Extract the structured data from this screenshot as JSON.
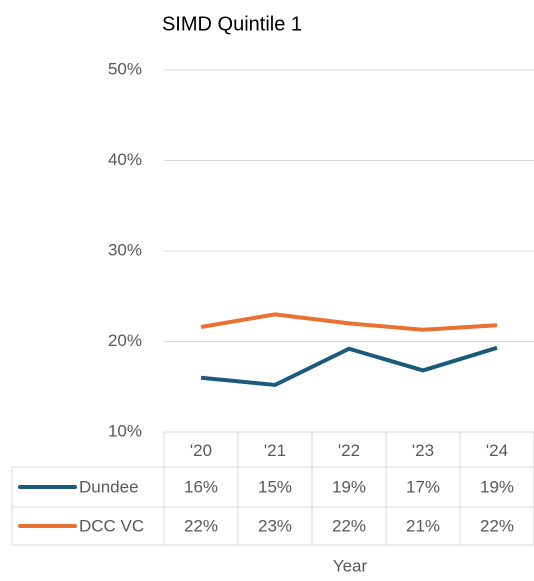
{
  "chart_data": {
    "type": "line",
    "title": "SIMD Quintile 1",
    "x_label": "Year",
    "categories": [
      "'20",
      "'21",
      "'22",
      "'23",
      "'24"
    ],
    "series": [
      {
        "name": "Dundee",
        "color": "#1b5a7a",
        "values": [
          16.0,
          15.2,
          19.2,
          16.8,
          19.3
        ],
        "value_labels": [
          "16%",
          "15%",
          "19%",
          "17%",
          "19%"
        ]
      },
      {
        "name": "DCC VC",
        "color": "#e97132",
        "values": [
          21.6,
          23.0,
          22.0,
          21.3,
          21.8
        ],
        "value_labels": [
          "22%",
          "23%",
          "22%",
          "21%",
          "22%"
        ]
      }
    ],
    "ylim": [
      10,
      50
    ],
    "yticks": [
      {
        "value": 10,
        "label": "10%"
      },
      {
        "value": 20,
        "label": "20%"
      },
      {
        "value": 30,
        "label": "30%"
      },
      {
        "value": 40,
        "label": "40%"
      },
      {
        "value": 50,
        "label": "50%"
      }
    ],
    "grid": true,
    "data_table": true
  }
}
